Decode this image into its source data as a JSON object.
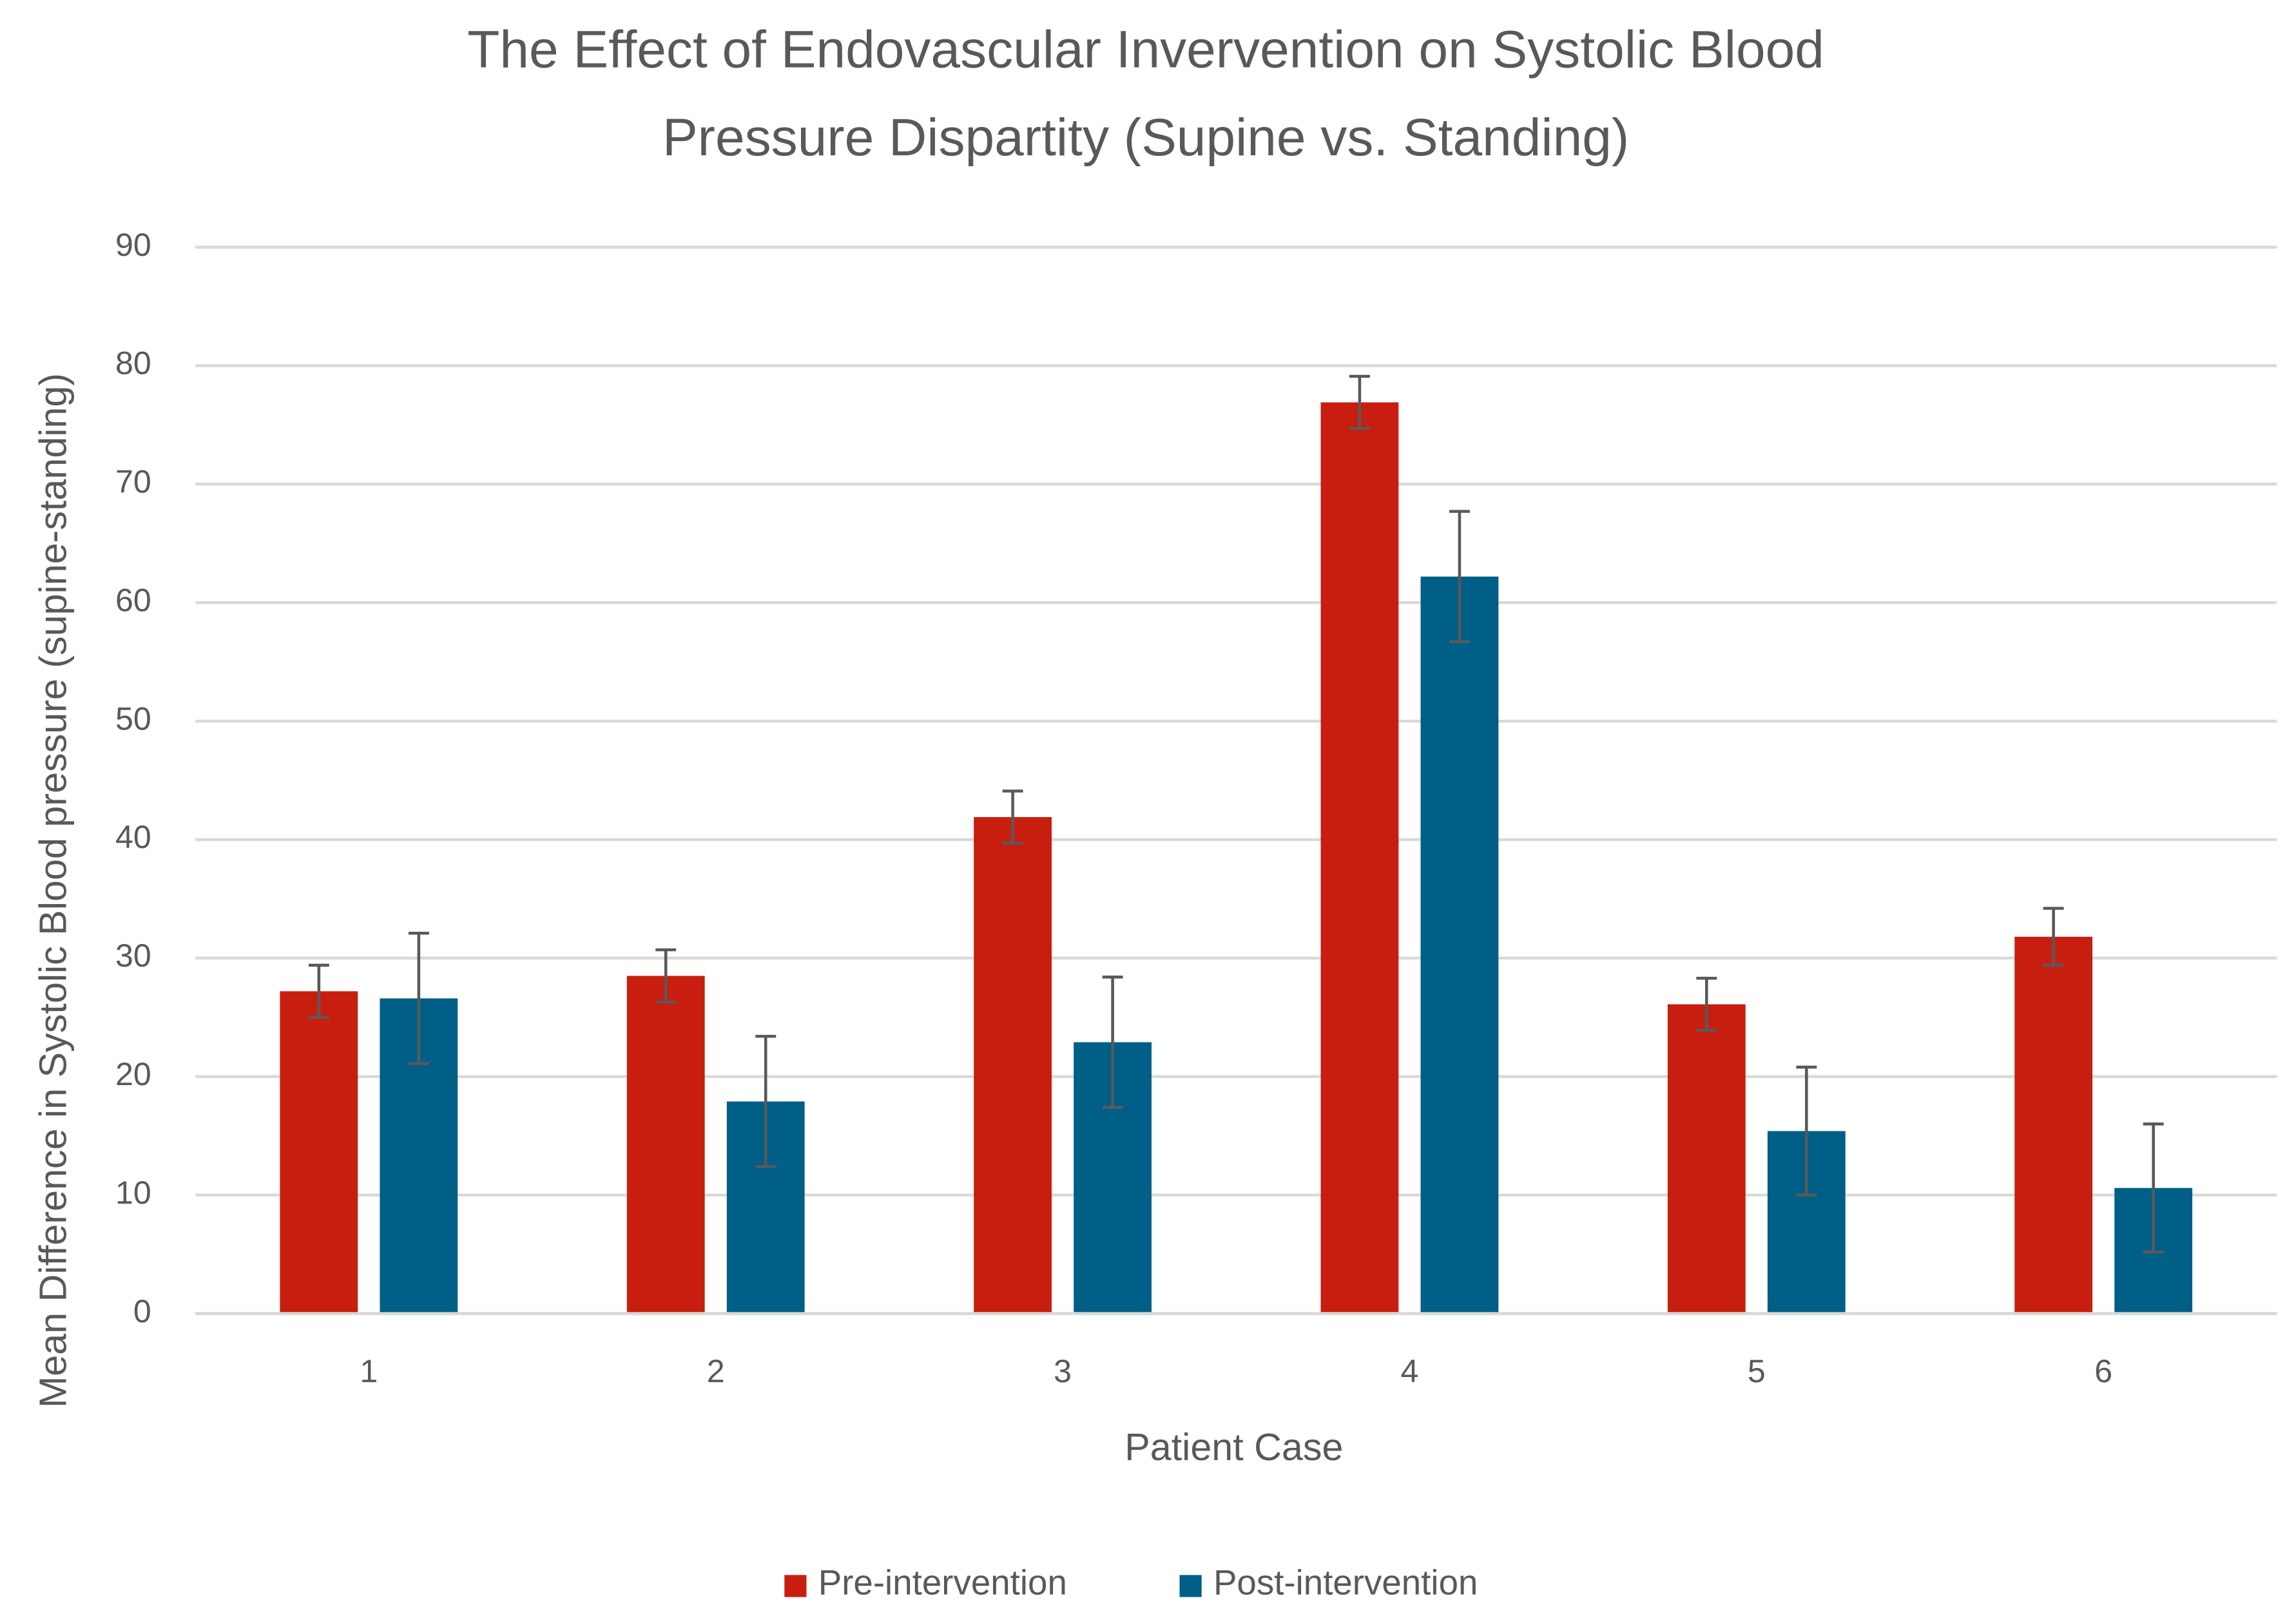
{
  "chart_data": {
    "type": "bar",
    "title": [
      "The Effect of Endovascular Invervention on Systolic Blood",
      "Pressure Dispartity (Supine vs. Standing)"
    ],
    "x_label": "Patient Case",
    "y_label": "Mean Difference in Systolic Blood pressure (supine-standing)",
    "categories": [
      "1",
      "2",
      "3",
      "4",
      "5",
      "6"
    ],
    "series": [
      {
        "name": "Pre-intervention",
        "color": "#c81e0f",
        "values": [
          27.2,
          28.5,
          41.9,
          76.9,
          26.1,
          31.8
        ],
        "errors": [
          2.2,
          2.2,
          2.2,
          2.2,
          2.2,
          2.4
        ]
      },
      {
        "name": "Post-intervention",
        "color": "#005f86",
        "values": [
          26.6,
          17.9,
          22.9,
          62.2,
          15.4,
          10.6
        ],
        "errors": [
          5.5,
          5.5,
          5.5,
          5.5,
          5.4,
          5.4
        ]
      }
    ],
    "ylim": [
      0,
      90
    ],
    "yticks": [
      0,
      10,
      20,
      30,
      40,
      50,
      60,
      70,
      80,
      90
    ],
    "grid": true,
    "legend": "bottom"
  }
}
